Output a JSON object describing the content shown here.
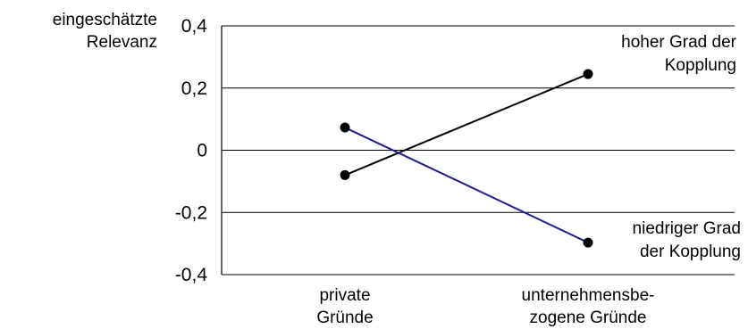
{
  "chart_data": {
    "type": "line",
    "ylabel": [
      "eingeschätzte",
      "Relevanz"
    ],
    "ylim": [
      -0.4,
      0.4
    ],
    "yticks": [
      {
        "value": 0.4,
        "label": "0,4"
      },
      {
        "value": 0.2,
        "label": "0,2"
      },
      {
        "value": 0,
        "label": "0"
      },
      {
        "value": -0.2,
        "label": "-0,2"
      },
      {
        "value": -0.4,
        "label": "-0,4"
      }
    ],
    "grid": true,
    "categories": [
      [
        "private",
        "Gründe"
      ],
      [
        "unternehmensbe-",
        "zogene Gründe"
      ]
    ],
    "series": [
      {
        "name": [
          "hoher Grad der",
          "Kopplung"
        ],
        "values": [
          -0.08,
          0.245
        ],
        "color": "#000000"
      },
      {
        "name": [
          "niedriger Grad",
          "der Kopplung"
        ],
        "values": [
          0.073,
          -0.297
        ],
        "color": "#1f1f8f"
      }
    ]
  }
}
